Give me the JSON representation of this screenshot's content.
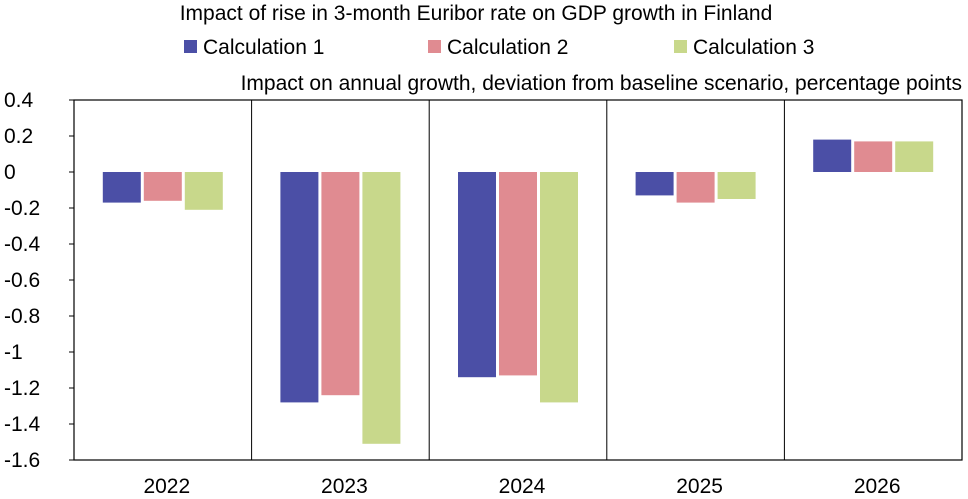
{
  "chart_data": {
    "type": "bar",
    "title": "Impact of rise in 3-month Euribor rate on GDP growth in Finland",
    "subtitle": "Impact on annual growth, deviation from baseline scenario, percentage points",
    "categories": [
      "2022",
      "2023",
      "2024",
      "2025",
      "2026"
    ],
    "series": [
      {
        "name": "Calculation 1",
        "color": "#4b4fa6",
        "values": [
          -0.17,
          -1.28,
          -1.14,
          -0.13,
          0.18
        ]
      },
      {
        "name": "Calculation 2",
        "color": "#e08b91",
        "values": [
          -0.16,
          -1.24,
          -1.13,
          -0.17,
          0.17
        ]
      },
      {
        "name": "Calculation 3",
        "color": "#c8d88b",
        "values": [
          -0.21,
          -1.51,
          -1.28,
          -0.15,
          0.17
        ]
      }
    ],
    "ylim": [
      -1.6,
      0.4
    ],
    "yticks": [
      "0.4",
      "0.2",
      "0",
      "-0.2",
      "-0.4",
      "-0.6",
      "-0.8",
      "-1",
      "-1.2",
      "-1.4",
      "-1.6"
    ],
    "grid": "vertical category separators",
    "legend_position": "top"
  }
}
